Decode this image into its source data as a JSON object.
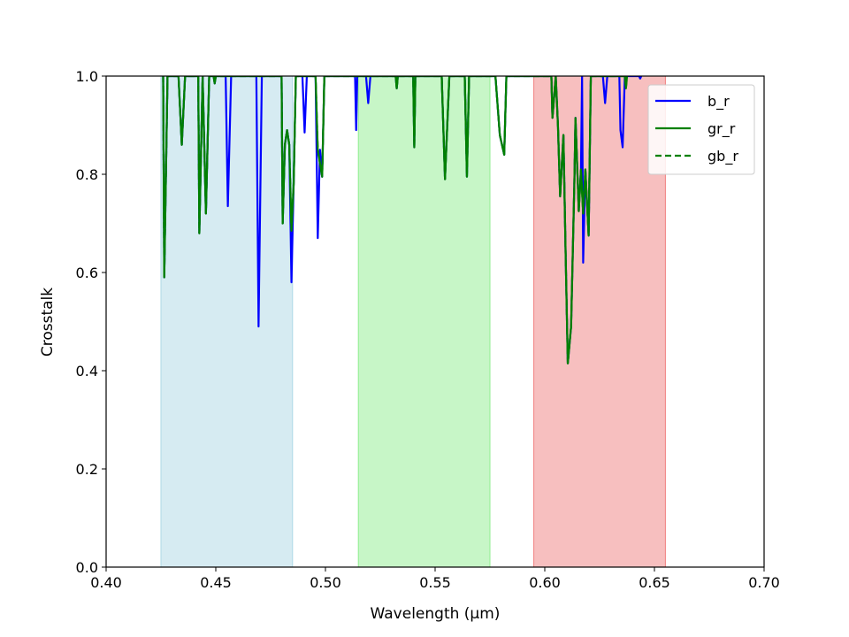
{
  "chart_data": {
    "type": "line",
    "title": "",
    "xlabel": "Wavelength (μm)",
    "ylabel": "Crosstalk",
    "xlim": [
      0.4,
      0.7
    ],
    "ylim": [
      0.0,
      1.0
    ],
    "xticks": [
      0.4,
      0.45,
      0.5,
      0.55,
      0.6,
      0.65,
      0.7
    ],
    "xtick_labels": [
      "0.40",
      "0.45",
      "0.50",
      "0.55",
      "0.60",
      "0.65",
      "0.70"
    ],
    "yticks": [
      0.0,
      0.2,
      0.4,
      0.6,
      0.8,
      1.0
    ],
    "ytick_labels": [
      "0.0",
      "0.2",
      "0.4",
      "0.6",
      "0.8",
      "1.0"
    ],
    "grid": false,
    "legend_position": "top-right",
    "bands": [
      {
        "x0": 0.425,
        "x1": 0.485,
        "color": "#add8e6"
      },
      {
        "x0": 0.515,
        "x1": 0.575,
        "color": "#90ee90"
      },
      {
        "x0": 0.595,
        "x1": 0.655,
        "color": "#f08080"
      }
    ],
    "series": [
      {
        "name": "b_r",
        "color": "#0000ff",
        "style": "solid",
        "points": [
          [
            0.426,
            1.0
          ],
          [
            0.4265,
            0.59
          ],
          [
            0.428,
            1.0
          ],
          [
            0.433,
            1.0
          ],
          [
            0.4345,
            0.86
          ],
          [
            0.436,
            1.0
          ],
          [
            0.442,
            1.0
          ],
          [
            0.4425,
            0.68
          ],
          [
            0.444,
            1.0
          ],
          [
            0.4455,
            0.72
          ],
          [
            0.447,
            1.0
          ],
          [
            0.449,
            1.0
          ],
          [
            0.4495,
            0.985
          ],
          [
            0.45,
            1.0
          ],
          [
            0.4545,
            1.0
          ],
          [
            0.4555,
            0.735
          ],
          [
            0.457,
            1.0
          ],
          [
            0.4685,
            1.0
          ],
          [
            0.4695,
            0.49
          ],
          [
            0.471,
            1.0
          ],
          [
            0.48,
            1.0
          ],
          [
            0.4805,
            0.7
          ],
          [
            0.4815,
            0.86
          ],
          [
            0.4825,
            0.89
          ],
          [
            0.4835,
            0.86
          ],
          [
            0.4845,
            0.58
          ],
          [
            0.4855,
            0.78
          ],
          [
            0.4865,
            1.0
          ],
          [
            0.4895,
            1.0
          ],
          [
            0.4905,
            0.885
          ],
          [
            0.4915,
            1.0
          ],
          [
            0.4955,
            1.0
          ],
          [
            0.4965,
            0.67
          ],
          [
            0.4975,
            0.85
          ],
          [
            0.4985,
            0.795
          ],
          [
            0.4995,
            1.0
          ],
          [
            0.5135,
            1.0
          ],
          [
            0.514,
            0.89
          ],
          [
            0.5145,
            1.0
          ],
          [
            0.5185,
            1.0
          ],
          [
            0.5195,
            0.945
          ],
          [
            0.5205,
            1.0
          ],
          [
            0.532,
            1.0
          ],
          [
            0.5325,
            0.975
          ],
          [
            0.533,
            1.0
          ],
          [
            0.54,
            1.0
          ],
          [
            0.5405,
            0.855
          ],
          [
            0.541,
            1.0
          ],
          [
            0.553,
            1.0
          ],
          [
            0.5545,
            0.79
          ],
          [
            0.5565,
            1.0
          ],
          [
            0.5635,
            1.0
          ],
          [
            0.5645,
            0.795
          ],
          [
            0.5655,
            1.0
          ],
          [
            0.5775,
            1.0
          ],
          [
            0.5795,
            0.88
          ],
          [
            0.5815,
            0.84
          ],
          [
            0.5825,
            1.0
          ],
          [
            0.603,
            1.0
          ],
          [
            0.6035,
            0.915
          ],
          [
            0.605,
            1.0
          ],
          [
            0.606,
            0.9
          ],
          [
            0.607,
            0.755
          ],
          [
            0.6085,
            0.88
          ],
          [
            0.6095,
            0.64
          ],
          [
            0.6105,
            0.415
          ],
          [
            0.612,
            0.49
          ],
          [
            0.6135,
            0.785
          ],
          [
            0.614,
            0.915
          ],
          [
            0.6155,
            0.725
          ],
          [
            0.6165,
            0.81
          ],
          [
            0.617,
            1.0
          ],
          [
            0.6175,
            0.62
          ],
          [
            0.6185,
            0.81
          ],
          [
            0.62,
            0.675
          ],
          [
            0.621,
            1.0
          ],
          [
            0.6265,
            1.0
          ],
          [
            0.6275,
            0.945
          ],
          [
            0.6285,
            1.0
          ],
          [
            0.634,
            1.0
          ],
          [
            0.6345,
            0.89
          ],
          [
            0.6355,
            0.855
          ],
          [
            0.6365,
            1.0
          ],
          [
            0.643,
            1.0
          ],
          [
            0.6435,
            0.995
          ],
          [
            0.644,
            1.0
          ]
        ]
      },
      {
        "name": "gr_r",
        "color": "#008000",
        "style": "solid",
        "points": [
          [
            0.426,
            1.0
          ],
          [
            0.4265,
            0.59
          ],
          [
            0.428,
            1.0
          ],
          [
            0.433,
            1.0
          ],
          [
            0.4345,
            0.86
          ],
          [
            0.436,
            1.0
          ],
          [
            0.442,
            1.0
          ],
          [
            0.4425,
            0.68
          ],
          [
            0.444,
            1.0
          ],
          [
            0.4455,
            0.72
          ],
          [
            0.447,
            1.0
          ],
          [
            0.449,
            1.0
          ],
          [
            0.4495,
            0.985
          ],
          [
            0.45,
            1.0
          ],
          [
            0.48,
            1.0
          ],
          [
            0.4805,
            0.7
          ],
          [
            0.4815,
            0.86
          ],
          [
            0.4825,
            0.89
          ],
          [
            0.4835,
            0.86
          ],
          [
            0.4845,
            0.685
          ],
          [
            0.4855,
            0.78
          ],
          [
            0.4865,
            1.0
          ],
          [
            0.4955,
            1.0
          ],
          [
            0.4965,
            0.85
          ],
          [
            0.4985,
            0.795
          ],
          [
            0.4995,
            1.0
          ],
          [
            0.532,
            1.0
          ],
          [
            0.5325,
            0.975
          ],
          [
            0.533,
            1.0
          ],
          [
            0.54,
            1.0
          ],
          [
            0.5405,
            0.855
          ],
          [
            0.541,
            1.0
          ],
          [
            0.553,
            1.0
          ],
          [
            0.5545,
            0.79
          ],
          [
            0.5565,
            1.0
          ],
          [
            0.5635,
            1.0
          ],
          [
            0.5645,
            0.795
          ],
          [
            0.5655,
            1.0
          ],
          [
            0.5775,
            1.0
          ],
          [
            0.5795,
            0.88
          ],
          [
            0.5815,
            0.84
          ],
          [
            0.5825,
            1.0
          ],
          [
            0.603,
            1.0
          ],
          [
            0.6035,
            0.915
          ],
          [
            0.605,
            1.0
          ],
          [
            0.606,
            0.9
          ],
          [
            0.607,
            0.755
          ],
          [
            0.6085,
            0.88
          ],
          [
            0.6095,
            0.64
          ],
          [
            0.6105,
            0.415
          ],
          [
            0.612,
            0.49
          ],
          [
            0.6135,
            0.785
          ],
          [
            0.614,
            0.915
          ],
          [
            0.6155,
            0.725
          ],
          [
            0.6165,
            0.81
          ],
          [
            0.6175,
            0.72
          ],
          [
            0.6185,
            0.81
          ],
          [
            0.62,
            0.675
          ],
          [
            0.621,
            1.0
          ],
          [
            0.6365,
            1.0
          ],
          [
            0.637,
            0.975
          ],
          [
            0.6375,
            1.0
          ]
        ]
      },
      {
        "name": "gb_r",
        "color": "#008000",
        "style": "dashed",
        "points": [
          [
            0.426,
            1.0
          ],
          [
            0.4265,
            0.59
          ],
          [
            0.428,
            1.0
          ],
          [
            0.433,
            1.0
          ],
          [
            0.4345,
            0.86
          ],
          [
            0.436,
            1.0
          ],
          [
            0.442,
            1.0
          ],
          [
            0.4425,
            0.68
          ],
          [
            0.444,
            1.0
          ],
          [
            0.4455,
            0.72
          ],
          [
            0.447,
            1.0
          ],
          [
            0.449,
            1.0
          ],
          [
            0.4495,
            0.985
          ],
          [
            0.45,
            1.0
          ],
          [
            0.48,
            1.0
          ],
          [
            0.4805,
            0.7
          ],
          [
            0.4815,
            0.86
          ],
          [
            0.4825,
            0.89
          ],
          [
            0.4835,
            0.86
          ],
          [
            0.4845,
            0.685
          ],
          [
            0.4855,
            0.78
          ],
          [
            0.4865,
            1.0
          ],
          [
            0.4955,
            1.0
          ],
          [
            0.4965,
            0.85
          ],
          [
            0.4985,
            0.795
          ],
          [
            0.4995,
            1.0
          ],
          [
            0.532,
            1.0
          ],
          [
            0.5325,
            0.975
          ],
          [
            0.533,
            1.0
          ],
          [
            0.54,
            1.0
          ],
          [
            0.5405,
            0.855
          ],
          [
            0.541,
            1.0
          ],
          [
            0.553,
            1.0
          ],
          [
            0.5545,
            0.79
          ],
          [
            0.5565,
            1.0
          ],
          [
            0.5635,
            1.0
          ],
          [
            0.5645,
            0.795
          ],
          [
            0.5655,
            1.0
          ],
          [
            0.5775,
            1.0
          ],
          [
            0.5795,
            0.88
          ],
          [
            0.5815,
            0.84
          ],
          [
            0.5825,
            1.0
          ],
          [
            0.603,
            1.0
          ],
          [
            0.6035,
            0.915
          ],
          [
            0.605,
            1.0
          ],
          [
            0.606,
            0.9
          ],
          [
            0.607,
            0.755
          ],
          [
            0.6085,
            0.88
          ],
          [
            0.6095,
            0.64
          ],
          [
            0.6105,
            0.415
          ],
          [
            0.612,
            0.49
          ],
          [
            0.6135,
            0.785
          ],
          [
            0.614,
            0.915
          ],
          [
            0.6155,
            0.725
          ],
          [
            0.6165,
            0.81
          ],
          [
            0.6175,
            0.72
          ],
          [
            0.6185,
            0.81
          ],
          [
            0.62,
            0.675
          ],
          [
            0.621,
            1.0
          ],
          [
            0.6365,
            1.0
          ],
          [
            0.637,
            0.975
          ],
          [
            0.6375,
            1.0
          ]
        ]
      }
    ]
  }
}
